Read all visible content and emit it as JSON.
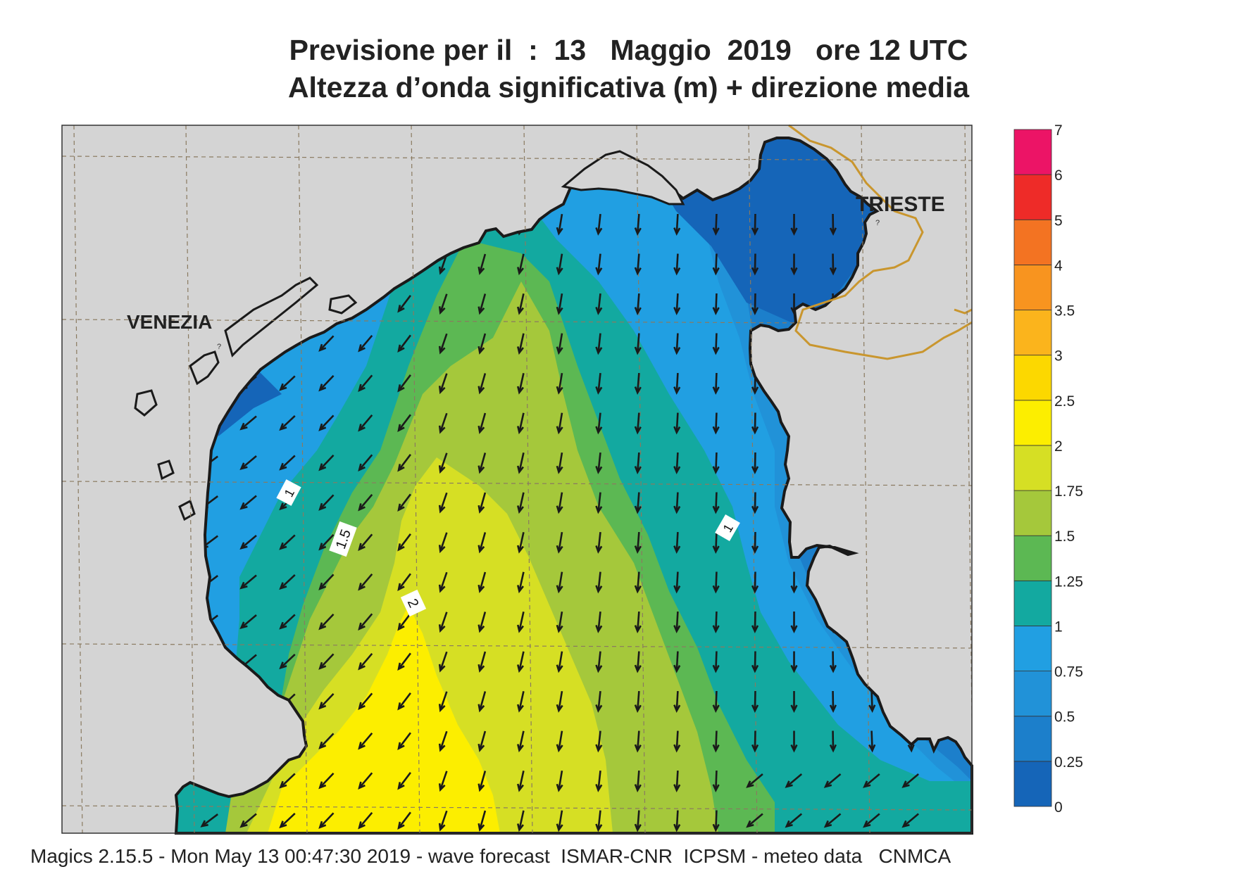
{
  "title_line1": "Previsione per il  :  13   Maggio  2019   ore 12 UTC",
  "title_line2": "Altezza d’onda significativa (m) + direzione media",
  "footer": "Magics 2.15.5 - Mon May 13 00:47:30 2019 - wave forecast  ISMAR-CNR  ICPSM - meteo data   CNMCA",
  "places": [
    {
      "name": "VENEZIA"
    },
    {
      "name": "TRIESTE"
    }
  ],
  "contour_labels": [
    "1",
    "1.5",
    "2",
    "1"
  ],
  "legend": {
    "ticks": [
      "0",
      "0.25",
      "0.5",
      "0.75",
      "1",
      "1.25",
      "1.5",
      "1.75",
      "2",
      "2.5",
      "3",
      "3.5",
      "4",
      "5",
      "6",
      "7"
    ],
    "colors": [
      "#1565b8",
      "#1c7fcb",
      "#2192d8",
      "#219fe2",
      "#13a9a0",
      "#5cb853",
      "#a5c83b",
      "#d6df24",
      "#fcee00",
      "#fcd800",
      "#fbb41c",
      "#f8941f",
      "#f37322",
      "#ee2b28",
      "#ec1466"
    ]
  },
  "chart_data": {
    "type": "heatmap",
    "title": "Previsione per il  :  13   Maggio  2019   ore 12 UTC",
    "subtitle": "Altezza d’onda significativa (m) + direzione media",
    "variable": "significant wave height (m) + mean direction",
    "colorbar_levels": [
      0,
      0.25,
      0.5,
      0.75,
      1,
      1.25,
      1.5,
      1.75,
      2,
      2.5,
      3,
      3.5,
      4,
      5,
      6,
      7
    ],
    "contour_labels": [
      1,
      1.5,
      2,
      1
    ],
    "wave_direction": "toward south / south-west",
    "max_height_range": "2 - 2.5 m"
  },
  "colors": {
    "land": "#d4d4d4",
    "coast": "#1a1a1a",
    "border": "#c9962e",
    "arrow": "#1a1a1a",
    "grid": "#8a7a60"
  }
}
